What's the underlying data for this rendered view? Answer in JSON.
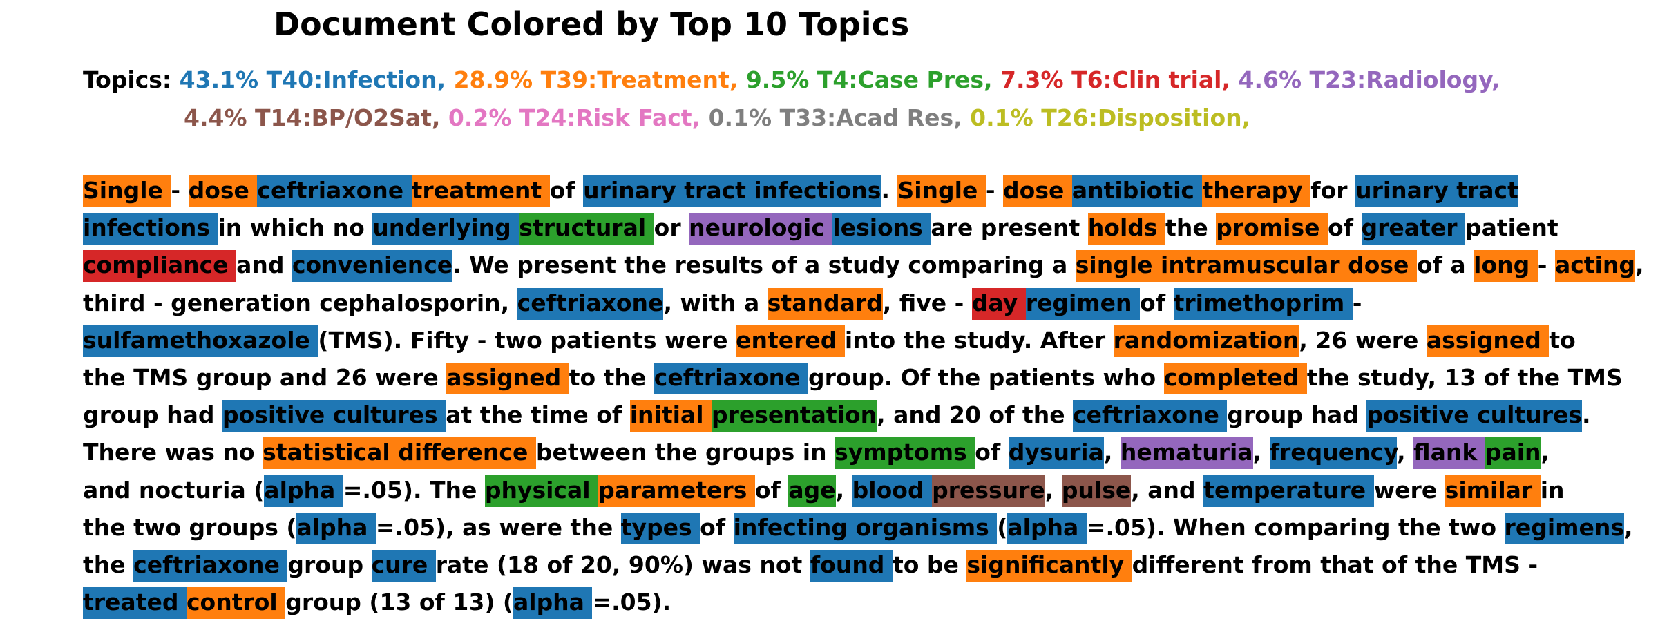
{
  "title": "Document Colored by Top 10 Topics",
  "legend": {
    "label": "Topics:",
    "rows": [
      [
        {
          "text": "43.1% T40:Infection,",
          "color": "#1f77b4"
        },
        {
          "text": "28.9% T39:Treatment,",
          "color": "#ff7f0e"
        },
        {
          "text": "9.5% T4:Case Pres,",
          "color": "#2ca02c"
        },
        {
          "text": "7.3% T6:Clin trial,",
          "color": "#d62728"
        },
        {
          "text": "4.6% T23:Radiology,",
          "color": "#9467bd"
        }
      ],
      [
        {
          "text": "4.4% T14:BP/O2Sat,",
          "color": "#8c564b"
        },
        {
          "text": "0.2% T24:Risk Fact,",
          "color": "#e377c2"
        },
        {
          "text": "0.1% T33:Acad Res,",
          "color": "#7f7f7f"
        },
        {
          "text": "0.1% T26:Disposition,",
          "color": "#bcbd22"
        }
      ]
    ]
  },
  "topic_colors": {
    "infection": "#1f77b4",
    "treatment": "#ff7f0e",
    "case_pres": "#2ca02c",
    "clin_trial": "#d62728",
    "radiology": "#9467bd",
    "bp_o2sat": "#8c564b"
  },
  "document": {
    "lines": [
      [
        {
          "t": "Single ",
          "c": "treatment"
        },
        {
          "t": "- "
        },
        {
          "t": "dose ",
          "c": "treatment"
        },
        {
          "t": "ceftriaxone ",
          "c": "infection"
        },
        {
          "t": "treatment ",
          "c": "treatment"
        },
        {
          "t": "of "
        },
        {
          "t": "urinary tract infections",
          "c": "infection"
        },
        {
          "t": ". "
        },
        {
          "t": "Single ",
          "c": "treatment"
        },
        {
          "t": "- "
        },
        {
          "t": "dose ",
          "c": "treatment"
        },
        {
          "t": "antibiotic ",
          "c": "infection"
        },
        {
          "t": "therapy ",
          "c": "treatment"
        },
        {
          "t": "for "
        },
        {
          "t": "urinary tract ",
          "c": "infection"
        }
      ],
      [
        {
          "t": "infections ",
          "c": "infection"
        },
        {
          "t": "in which no "
        },
        {
          "t": "underlying ",
          "c": "infection"
        },
        {
          "t": "structural ",
          "c": "case_pres"
        },
        {
          "t": "or "
        },
        {
          "t": "neurologic ",
          "c": "radiology"
        },
        {
          "t": "lesions ",
          "c": "infection"
        },
        {
          "t": "are present "
        },
        {
          "t": "holds ",
          "c": "treatment"
        },
        {
          "t": "the "
        },
        {
          "t": "promise ",
          "c": "treatment"
        },
        {
          "t": "of "
        },
        {
          "t": "greater ",
          "c": "infection"
        },
        {
          "t": "patient"
        }
      ],
      [
        {
          "t": "compliance ",
          "c": "clin_trial"
        },
        {
          "t": "and "
        },
        {
          "t": "convenience",
          "c": "infection"
        },
        {
          "t": ". We present the results of a study comparing a "
        },
        {
          "t": "single intramuscular dose ",
          "c": "treatment"
        },
        {
          "t": "of a "
        },
        {
          "t": "long ",
          "c": "treatment"
        },
        {
          "t": "- "
        },
        {
          "t": "acting",
          "c": "treatment"
        },
        {
          "t": ","
        }
      ],
      [
        {
          "t": "third - generation cephalosporin, "
        },
        {
          "t": "ceftriaxone",
          "c": "infection"
        },
        {
          "t": ", with a "
        },
        {
          "t": "standard",
          "c": "treatment"
        },
        {
          "t": ", five - "
        },
        {
          "t": "day ",
          "c": "clin_trial"
        },
        {
          "t": "regimen ",
          "c": "infection"
        },
        {
          "t": "of "
        },
        {
          "t": "trimethoprim ",
          "c": "infection"
        },
        {
          "t": "-"
        }
      ],
      [
        {
          "t": "sulfamethoxazole ",
          "c": "infection"
        },
        {
          "t": "(TMS). Fifty - two patients were "
        },
        {
          "t": "entered ",
          "c": "treatment"
        },
        {
          "t": "into the study. After "
        },
        {
          "t": "randomization",
          "c": "treatment"
        },
        {
          "t": ", 26 were "
        },
        {
          "t": "assigned ",
          "c": "treatment"
        },
        {
          "t": "to"
        }
      ],
      [
        {
          "t": "the TMS group and 26 were "
        },
        {
          "t": "assigned ",
          "c": "treatment"
        },
        {
          "t": "to the "
        },
        {
          "t": "ceftriaxone ",
          "c": "infection"
        },
        {
          "t": "group. Of the patients who "
        },
        {
          "t": "completed ",
          "c": "treatment"
        },
        {
          "t": "the study, 13 of the TMS"
        }
      ],
      [
        {
          "t": "group had "
        },
        {
          "t": "positive cultures ",
          "c": "infection"
        },
        {
          "t": "at the time of "
        },
        {
          "t": "initial ",
          "c": "treatment"
        },
        {
          "t": "presentation",
          "c": "case_pres"
        },
        {
          "t": ", and 20 of the "
        },
        {
          "t": "ceftriaxone ",
          "c": "infection"
        },
        {
          "t": "group had "
        },
        {
          "t": "positive cultures",
          "c": "infection"
        },
        {
          "t": "."
        }
      ],
      [
        {
          "t": "There was no "
        },
        {
          "t": "statistical difference ",
          "c": "treatment"
        },
        {
          "t": "between the groups in "
        },
        {
          "t": "symptoms ",
          "c": "case_pres"
        },
        {
          "t": "of "
        },
        {
          "t": "dysuria",
          "c": "infection"
        },
        {
          "t": ", "
        },
        {
          "t": "hematuria",
          "c": "radiology"
        },
        {
          "t": ", "
        },
        {
          "t": "frequency",
          "c": "infection"
        },
        {
          "t": ", "
        },
        {
          "t": "flank ",
          "c": "radiology"
        },
        {
          "t": "pain",
          "c": "case_pres"
        },
        {
          "t": ","
        }
      ],
      [
        {
          "t": "and nocturia ("
        },
        {
          "t": "alpha ",
          "c": "infection"
        },
        {
          "t": "=.05). The "
        },
        {
          "t": "physical ",
          "c": "case_pres"
        },
        {
          "t": "parameters ",
          "c": "treatment"
        },
        {
          "t": "of "
        },
        {
          "t": "age",
          "c": "case_pres"
        },
        {
          "t": ", "
        },
        {
          "t": "blood ",
          "c": "infection"
        },
        {
          "t": "pressure",
          "c": "bp_o2sat"
        },
        {
          "t": ", "
        },
        {
          "t": "pulse",
          "c": "bp_o2sat"
        },
        {
          "t": ", and "
        },
        {
          "t": "temperature ",
          "c": "infection"
        },
        {
          "t": "were "
        },
        {
          "t": "similar ",
          "c": "treatment"
        },
        {
          "t": "in"
        }
      ],
      [
        {
          "t": "the two groups ("
        },
        {
          "t": "alpha ",
          "c": "infection"
        },
        {
          "t": "=.05), as were the "
        },
        {
          "t": "types ",
          "c": "infection"
        },
        {
          "t": "of "
        },
        {
          "t": "infecting organisms ",
          "c": "infection"
        },
        {
          "t": "("
        },
        {
          "t": "alpha ",
          "c": "infection"
        },
        {
          "t": "=.05). When comparing the two "
        },
        {
          "t": "regimens",
          "c": "infection"
        },
        {
          "t": ","
        }
      ],
      [
        {
          "t": "the "
        },
        {
          "t": "ceftriaxone ",
          "c": "infection"
        },
        {
          "t": "group "
        },
        {
          "t": "cure ",
          "c": "infection"
        },
        {
          "t": "rate (18 of 20, 90%) was not "
        },
        {
          "t": "found ",
          "c": "infection"
        },
        {
          "t": "to be "
        },
        {
          "t": "significantly ",
          "c": "treatment"
        },
        {
          "t": "different from that of the TMS -"
        }
      ],
      [
        {
          "t": "treated ",
          "c": "infection"
        },
        {
          "t": "control ",
          "c": "treatment"
        },
        {
          "t": "group (13 of 13) ("
        },
        {
          "t": "alpha ",
          "c": "infection"
        },
        {
          "t": "=.05)."
        }
      ]
    ]
  }
}
